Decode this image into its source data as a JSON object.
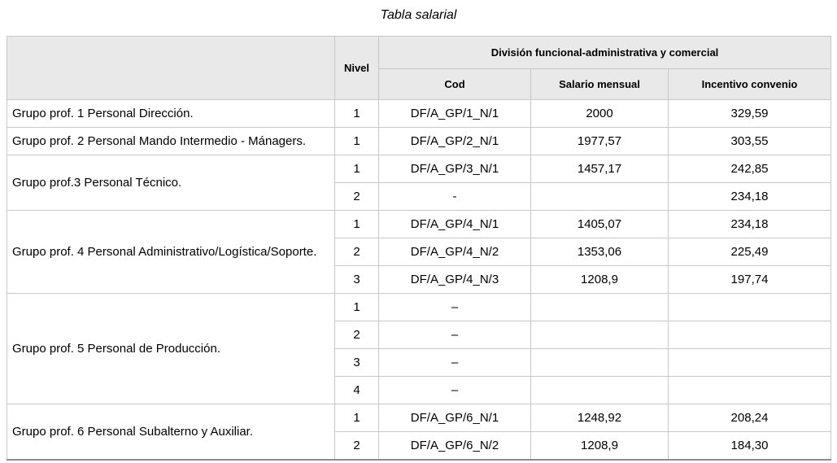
{
  "title": "Tabla salarial",
  "table": {
    "headers": {
      "group": "",
      "nivel": "Nivel",
      "division": "División funcional-administrativa y comercial",
      "cod": "Cod",
      "salario": "Salario mensual",
      "incentivo": "Incentivo convenio"
    },
    "groups": [
      {
        "label": "Grupo prof. 1 Personal Dirección.",
        "rows": [
          {
            "nivel": "1",
            "cod": "DF/A_GP/1_N/1",
            "salario": "2000",
            "incentivo": "329,59"
          }
        ]
      },
      {
        "label": "Grupo prof. 2 Personal Mando Intermedio - Mánagers.",
        "rows": [
          {
            "nivel": "1",
            "cod": "DF/A_GP/2_N/1",
            "salario": "1977,57",
            "incentivo": "303,55"
          }
        ]
      },
      {
        "label": "Grupo prof.3 Personal Técnico.",
        "rows": [
          {
            "nivel": "1",
            "cod": "DF/A_GP/3_N/1",
            "salario": "1457,17",
            "incentivo": "242,85"
          },
          {
            "nivel": "2",
            "cod": "-",
            "salario": "",
            "incentivo": "234,18"
          }
        ]
      },
      {
        "label": "Grupo prof. 4 Personal Administrativo/Logística/Soporte.",
        "rows": [
          {
            "nivel": "1",
            "cod": "DF/A_GP/4_N/1",
            "salario": "1405,07",
            "incentivo": "234,18"
          },
          {
            "nivel": "2",
            "cod": "DF/A_GP/4_N/2",
            "salario": "1353,06",
            "incentivo": "225,49"
          },
          {
            "nivel": "3",
            "cod": "DF/A_GP/4_N/3",
            "salario": "1208,9",
            "incentivo": "197,74"
          }
        ]
      },
      {
        "label": "Grupo prof. 5 Personal de Producción.",
        "rows": [
          {
            "nivel": "1",
            "cod": "–",
            "salario": "",
            "incentivo": ""
          },
          {
            "nivel": "2",
            "cod": "–",
            "salario": "",
            "incentivo": ""
          },
          {
            "nivel": "3",
            "cod": "–",
            "salario": "",
            "incentivo": ""
          },
          {
            "nivel": "4",
            "cod": "–",
            "salario": "",
            "incentivo": ""
          }
        ]
      },
      {
        "label": "Grupo prof. 6 Personal Subalterno y Auxiliar.",
        "rows": [
          {
            "nivel": "1",
            "cod": "DF/A_GP/6_N/1",
            "salario": "1248,92",
            "incentivo": "208,24"
          },
          {
            "nivel": "2",
            "cod": "DF/A_GP/6_N/2",
            "salario": "1208,9",
            "incentivo": "184,30"
          }
        ]
      }
    ]
  }
}
